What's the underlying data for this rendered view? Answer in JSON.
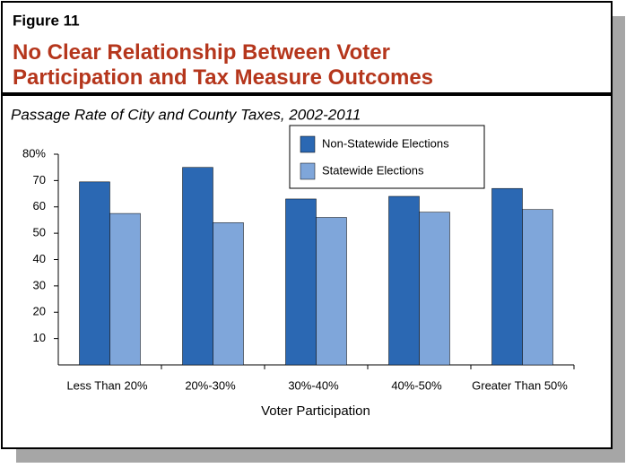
{
  "figure_label": "Figure 11",
  "chart_data": {
    "type": "bar",
    "title": "No Clear Relationship Between Voter Participation and Tax Measure Outcomes",
    "subtitle": "Passage Rate of City and County Taxes, 2002-2011",
    "x_label": "Voter Participation",
    "categories": [
      "Less Than 20%",
      "20%-30%",
      "30%-40%",
      "40%-50%",
      "Greater Than 50%"
    ],
    "series": [
      {
        "name": "Non-Statewide Elections",
        "color": "#2b68b3",
        "values": [
          69.5,
          75,
          63,
          64,
          67
        ]
      },
      {
        "name": "Statewide Elections",
        "color": "#7fa6da",
        "values": [
          57.5,
          54,
          56,
          58,
          59
        ]
      }
    ],
    "ylim": [
      0,
      80
    ],
    "yticks": [
      10,
      20,
      30,
      40,
      50,
      60,
      70,
      {
        "value": 80,
        "label": "80%"
      }
    ],
    "grid": false,
    "legend": "top-center"
  }
}
